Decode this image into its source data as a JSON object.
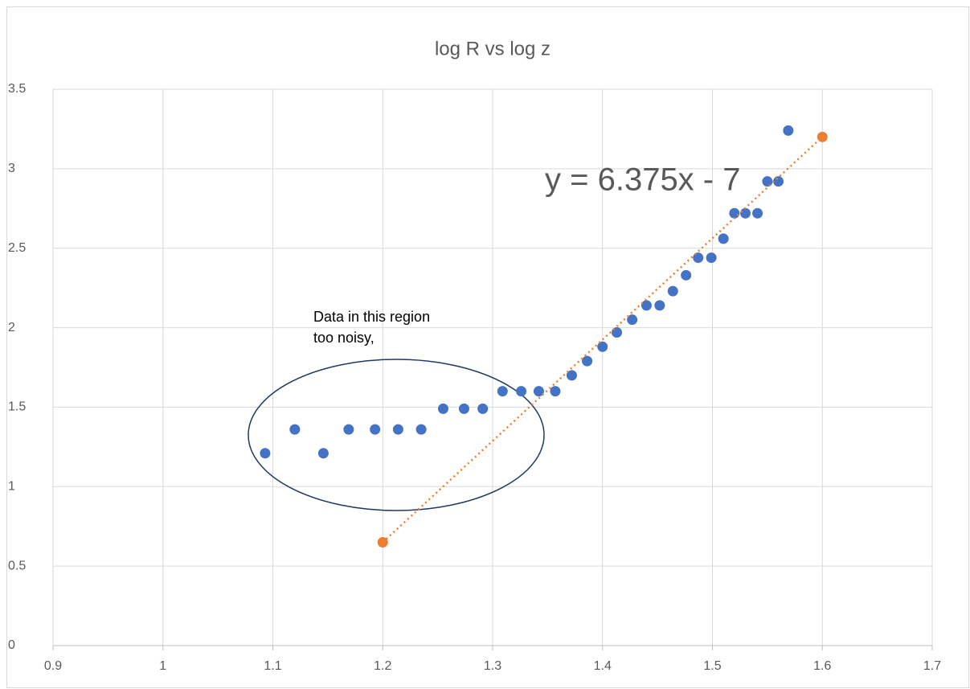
{
  "chart_data": {
    "type": "scatter",
    "title": "log R vs log z",
    "equation": "y = 6.375x - 7",
    "annotation": [
      "Data in this region",
      "too noisy,"
    ],
    "xlim": [
      0.9,
      1.7
    ],
    "xticks": [
      0.9,
      1,
      1.1,
      1.2,
      1.3,
      1.4,
      1.5,
      1.6,
      1.7
    ],
    "ylim": [
      0,
      3.5
    ],
    "yticks": [
      0,
      0.5,
      1,
      1.5,
      2,
      2.5,
      3,
      3.5
    ],
    "grid": true,
    "series": [
      {
        "color": "#4472c4",
        "x": [
          1.093,
          1.12,
          1.146,
          1.169,
          1.193,
          1.214,
          1.235,
          1.255,
          1.274,
          1.291,
          1.309,
          1.326,
          1.342,
          1.357,
          1.372,
          1.386,
          1.4,
          1.413,
          1.427,
          1.44,
          1.452,
          1.464,
          1.476,
          1.487,
          1.499,
          1.51,
          1.52,
          1.53,
          1.541,
          1.55,
          1.56,
          1.569
        ],
        "values": [
          1.21,
          1.36,
          1.21,
          1.36,
          1.36,
          1.36,
          1.36,
          1.49,
          1.49,
          1.49,
          1.6,
          1.6,
          1.6,
          1.6,
          1.7,
          1.79,
          1.88,
          1.97,
          2.05,
          2.14,
          2.14,
          2.23,
          2.33,
          2.44,
          2.44,
          2.56,
          2.72,
          2.72,
          2.72,
          2.92,
          2.92,
          3.24
        ]
      },
      {
        "color": "#ed7d31",
        "line": "dotted",
        "x": [
          1.2,
          1.6
        ],
        "values": [
          0.65,
          3.2
        ]
      }
    ]
  }
}
